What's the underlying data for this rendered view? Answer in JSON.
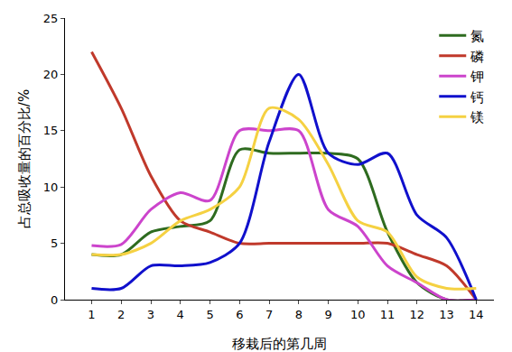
{
  "chart_data": {
    "type": "line",
    "x_label": "移栽后的第几周",
    "y_label": "占总吸收量的百分比/%",
    "x": [
      1,
      2,
      3,
      4,
      5,
      6,
      7,
      8,
      9,
      10,
      11,
      12,
      13,
      14
    ],
    "series": [
      {
        "name": "氮",
        "color": "#2e6b1f",
        "values": [
          4,
          4,
          6,
          6.5,
          7,
          13.3,
          13,
          13,
          13,
          12.5,
          6,
          1.5,
          0,
          0
        ]
      },
      {
        "name": "磷",
        "color": "#c0392b",
        "values": [
          22,
          17,
          11,
          7,
          6,
          5,
          5,
          5,
          5,
          5,
          5,
          4,
          3,
          0
        ]
      },
      {
        "name": "钾",
        "color": "#cc44cc",
        "values": [
          4.8,
          4.9,
          8,
          9.5,
          8.8,
          15,
          15,
          15,
          8,
          6.5,
          3,
          1.5,
          0,
          0
        ]
      },
      {
        "name": "钙",
        "color": "#1010cc",
        "values": [
          1,
          1,
          3,
          3,
          3.3,
          5,
          14,
          20,
          13,
          12,
          13,
          7.5,
          5.5,
          0
        ]
      },
      {
        "name": "镁",
        "color": "#f5d142",
        "values": [
          4,
          4,
          5,
          7,
          8,
          10,
          17,
          16,
          12,
          7,
          6,
          2,
          1,
          1
        ]
      }
    ],
    "xlim": [
      0.1,
      14.6
    ],
    "xticks": [
      1,
      2,
      3,
      4,
      5,
      6,
      7,
      8,
      9,
      10,
      11,
      12,
      13,
      14
    ],
    "ylim": [
      0,
      25
    ],
    "yticks": [
      0,
      5,
      10,
      15,
      20,
      25
    ],
    "grid": false,
    "legend": "upper right"
  }
}
